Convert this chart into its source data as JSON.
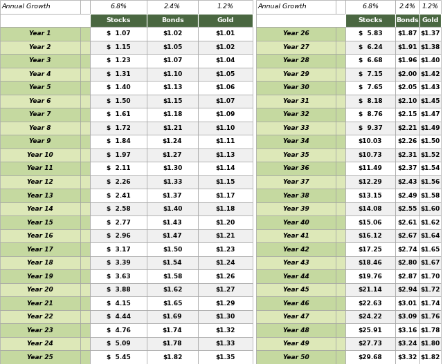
{
  "header_row1": [
    "Annual Growth",
    "6.8%",
    "2.4%",
    "1.2%",
    "Annual Growth",
    "6.8%",
    "2.4%",
    "1.2%"
  ],
  "header_row2": [
    "",
    "Stocks",
    "Bonds",
    "Gold",
    "",
    "Stocks",
    "Bonds",
    "Gold"
  ],
  "years_left": [
    "Year 1",
    "Year 2",
    "Year 3",
    "Year 4",
    "Year 5",
    "Year 6",
    "Year 7",
    "Year 8",
    "Year 9",
    "Year 10",
    "Year 11",
    "Year 12",
    "Year 13",
    "Year 14",
    "Year 15",
    "Year 16",
    "Year 17",
    "Year 18",
    "Year 19",
    "Year 20",
    "Year 21",
    "Year 22",
    "Year 23",
    "Year 24",
    "Year 25"
  ],
  "years_right": [
    "Year 26",
    "Year 27",
    "Year 28",
    "Year 29",
    "Year 30",
    "Year 31",
    "Year 32",
    "Year 33",
    "Year 34",
    "Year 35",
    "Year 36",
    "Year 37",
    "Year 38",
    "Year 39",
    "Year 40",
    "Year 41",
    "Year 42",
    "Year 43",
    "Year 44",
    "Year 45",
    "Year 46",
    "Year 47",
    "Year 48",
    "Year 49",
    "Year 50"
  ],
  "stocks_left": [
    1.07,
    1.15,
    1.23,
    1.31,
    1.4,
    1.5,
    1.61,
    1.72,
    1.84,
    1.97,
    2.11,
    2.26,
    2.41,
    2.58,
    2.77,
    2.96,
    3.17,
    3.39,
    3.63,
    3.88,
    4.15,
    4.44,
    4.76,
    5.09,
    5.45
  ],
  "bonds_left": [
    1.02,
    1.05,
    1.07,
    1.1,
    1.13,
    1.15,
    1.18,
    1.21,
    1.24,
    1.27,
    1.3,
    1.33,
    1.37,
    1.4,
    1.43,
    1.47,
    1.5,
    1.54,
    1.58,
    1.62,
    1.65,
    1.69,
    1.74,
    1.78,
    1.82
  ],
  "gold_left": [
    1.01,
    1.02,
    1.04,
    1.05,
    1.06,
    1.07,
    1.09,
    1.1,
    1.11,
    1.13,
    1.14,
    1.15,
    1.17,
    1.18,
    1.2,
    1.21,
    1.23,
    1.24,
    1.26,
    1.27,
    1.29,
    1.3,
    1.32,
    1.33,
    1.35
  ],
  "stocks_right": [
    5.83,
    6.24,
    6.68,
    7.15,
    7.65,
    8.18,
    8.76,
    9.37,
    10.03,
    10.73,
    11.49,
    12.29,
    13.15,
    14.08,
    15.06,
    16.12,
    17.25,
    18.46,
    19.76,
    21.14,
    22.63,
    24.22,
    25.91,
    27.73,
    29.68
  ],
  "bonds_right": [
    1.87,
    1.91,
    1.96,
    2.0,
    2.05,
    2.1,
    2.15,
    2.21,
    2.26,
    2.31,
    2.37,
    2.43,
    2.49,
    2.55,
    2.61,
    2.67,
    2.74,
    2.8,
    2.87,
    2.94,
    3.01,
    3.09,
    3.16,
    3.24,
    3.32
  ],
  "gold_right": [
    1.37,
    1.38,
    1.4,
    1.42,
    1.43,
    1.45,
    1.47,
    1.49,
    1.5,
    1.52,
    1.54,
    1.56,
    1.58,
    1.6,
    1.62,
    1.64,
    1.65,
    1.67,
    1.7,
    1.72,
    1.74,
    1.76,
    1.78,
    1.8,
    1.82
  ],
  "header_bg": "#4a6741",
  "header_text_color": "#ffffff",
  "row_label_bg_odd": "#c5d9a0",
  "row_label_bg_even": "#dde8b8",
  "data_bg_odd": "#ffffff",
  "data_bg_even": "#f0f0f0",
  "border_color": "#a0a0a0",
  "gap_color": "#ffffff"
}
